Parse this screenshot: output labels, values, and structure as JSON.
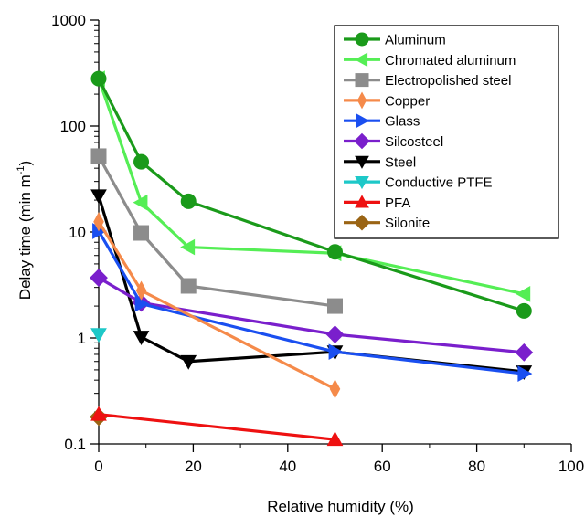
{
  "chart_data": {
    "type": "line",
    "xlabel": "Relative humidity (%)",
    "ylabel_main": "Delay time (min m",
    "ylabel_sup": "-1",
    "ylabel_close": ")",
    "xlim": [
      0,
      100
    ],
    "ylim": [
      0.1,
      1000
    ],
    "yscale": "log",
    "x_ticks": [
      0,
      20,
      40,
      60,
      80,
      100
    ],
    "x_tick_labels": [
      "0",
      "20",
      "40",
      "60",
      "80",
      "100"
    ],
    "y_ticks": [
      0.1,
      1,
      10,
      100,
      1000
    ],
    "y_tick_labels": [
      "0.1",
      "1",
      "10",
      "100",
      "1000"
    ],
    "grid": false,
    "legend_position": "top-right",
    "series": [
      {
        "name": "Aluminum",
        "color": "#1a9a1a",
        "marker": "circle",
        "points": [
          [
            0,
            280
          ],
          [
            9,
            46
          ],
          [
            19,
            19.5
          ],
          [
            50,
            6.5
          ],
          [
            90,
            1.8
          ]
        ]
      },
      {
        "name": "Chromated aluminum",
        "color": "#55ee55",
        "marker": "triangle-left",
        "points": [
          [
            0,
            280
          ],
          [
            9,
            19
          ],
          [
            19,
            7.2
          ],
          [
            50,
            6.3
          ],
          [
            90,
            2.6
          ]
        ]
      },
      {
        "name": "Electropolished steel",
        "color": "#8c8c8c",
        "marker": "square",
        "points": [
          [
            0,
            52
          ],
          [
            9,
            9.8
          ],
          [
            19,
            3.1
          ],
          [
            50,
            2.0
          ]
        ]
      },
      {
        "name": "Copper",
        "color": "#f58a4a",
        "marker": "thin-diamond",
        "points": [
          [
            0,
            12.5
          ],
          [
            9,
            2.8
          ],
          [
            50,
            0.33
          ]
        ]
      },
      {
        "name": "Glass",
        "color": "#1a4ff0",
        "marker": "triangle-right",
        "points": [
          [
            0,
            10.2
          ],
          [
            9,
            2.1
          ],
          [
            50,
            0.74
          ],
          [
            90,
            0.46
          ]
        ]
      },
      {
        "name": "Silcosteel",
        "color": "#7a1fcc",
        "marker": "diamond",
        "points": [
          [
            0,
            3.7
          ],
          [
            9,
            2.15
          ],
          [
            50,
            1.08
          ],
          [
            90,
            0.73
          ]
        ]
      },
      {
        "name": "Steel",
        "color": "#000000",
        "marker": "triangle-down",
        "points": [
          [
            0,
            22
          ],
          [
            9,
            1.02
          ],
          [
            19,
            0.6
          ],
          [
            50,
            0.74
          ],
          [
            90,
            0.48
          ]
        ]
      },
      {
        "name": "Conductive PTFE",
        "color": "#1ec8c8",
        "marker": "triangle-down",
        "points": [
          [
            0,
            1.08
          ]
        ]
      },
      {
        "name": "PFA",
        "color": "#ee1111",
        "marker": "triangle-up",
        "points": [
          [
            0,
            0.19
          ],
          [
            50,
            0.11
          ]
        ]
      },
      {
        "name": "Silonite",
        "color": "#9a6414",
        "marker": "diamond",
        "points": [
          [
            0,
            0.18
          ]
        ]
      }
    ]
  }
}
